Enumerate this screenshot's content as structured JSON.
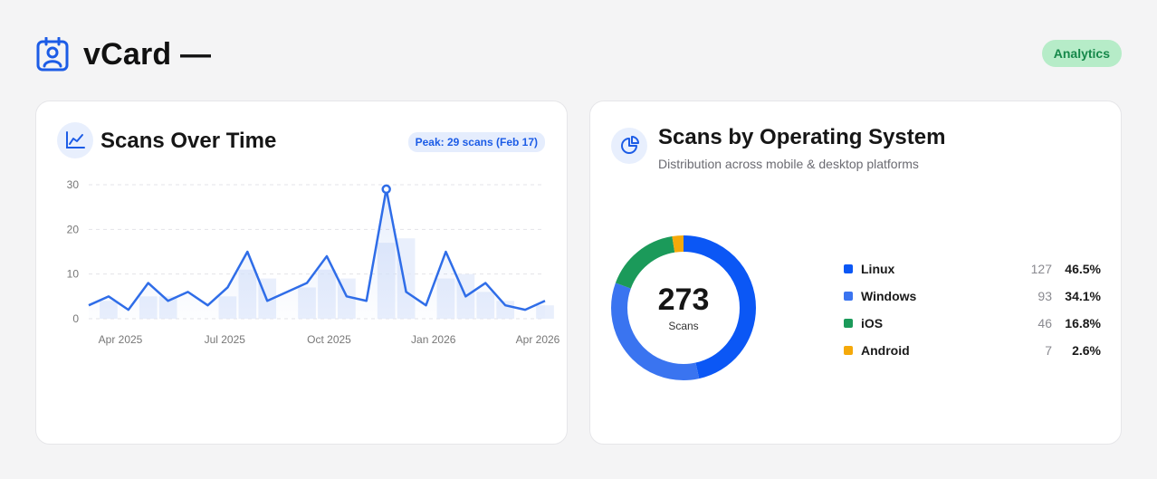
{
  "header": {
    "title": "vCard —",
    "badge": "Analytics",
    "icon": "contact-badge-icon",
    "accent": "#1c5ce6"
  },
  "scans_card": {
    "title": "Scans Over Time",
    "icon": "line-chart-icon",
    "peak_label": "Peak: 29 scans (Feb 17)"
  },
  "os_card": {
    "title": "Scans by Operating System",
    "subtitle": "Distribution across mobile & desktop platforms",
    "icon": "pie-chart-icon",
    "total": "273",
    "total_label": "Scans",
    "legend": [
      {
        "name": "Linux",
        "count": "127",
        "pct": "46.5%",
        "color": "#0b57f5"
      },
      {
        "name": "Windows",
        "count": "93",
        "pct": "34.1%",
        "color": "#3a74f0"
      },
      {
        "name": "iOS",
        "count": "46",
        "pct": "16.8%",
        "color": "#1b9a5a"
      },
      {
        "name": "Android",
        "count": "7",
        "pct": "2.6%",
        "color": "#f5a90a"
      }
    ]
  },
  "chart_data": [
    {
      "type": "line",
      "title": "Scans Over Time",
      "xlabel": "",
      "ylabel": "",
      "ylim": [
        0,
        30
      ],
      "yticks": [
        0,
        10,
        20,
        30
      ],
      "xticks": [
        "Apr 2025",
        "Jul 2025",
        "Oct 2025",
        "Jan 2026",
        "Apr 2026"
      ],
      "grid": true,
      "line_color": "#2f6de8",
      "bar_color": "#dfe8fb",
      "series": [
        {
          "values": [
            3,
            5,
            2,
            8,
            4,
            6,
            3,
            7,
            15,
            4,
            6,
            8,
            14,
            5,
            4,
            29,
            6,
            3,
            15,
            5,
            8,
            3,
            2,
            4
          ]
        }
      ],
      "bars": [
        {
          "index": 1,
          "value": 4
        },
        {
          "index": 3,
          "value": 5
        },
        {
          "index": 4,
          "value": 5
        },
        {
          "index": 7,
          "value": 5
        },
        {
          "index": 8,
          "value": 11
        },
        {
          "index": 9,
          "value": 9
        },
        {
          "index": 11,
          "value": 7
        },
        {
          "index": 12,
          "value": 11
        },
        {
          "index": 13,
          "value": 9
        },
        {
          "index": 15,
          "value": 17
        },
        {
          "index": 16,
          "value": 18
        },
        {
          "index": 18,
          "value": 9
        },
        {
          "index": 19,
          "value": 10
        },
        {
          "index": 20,
          "value": 6
        },
        {
          "index": 21,
          "value": 4
        },
        {
          "index": 23,
          "value": 3
        }
      ],
      "peak_index": 15
    },
    {
      "type": "pie",
      "title": "Scans by Operating System",
      "categories": [
        "Linux",
        "Windows",
        "iOS",
        "Android"
      ],
      "values": [
        127,
        93,
        46,
        7
      ],
      "colors": [
        "#0b57f5",
        "#3a74f0",
        "#1b9a5a",
        "#f5a90a"
      ],
      "legend": "right"
    }
  ]
}
